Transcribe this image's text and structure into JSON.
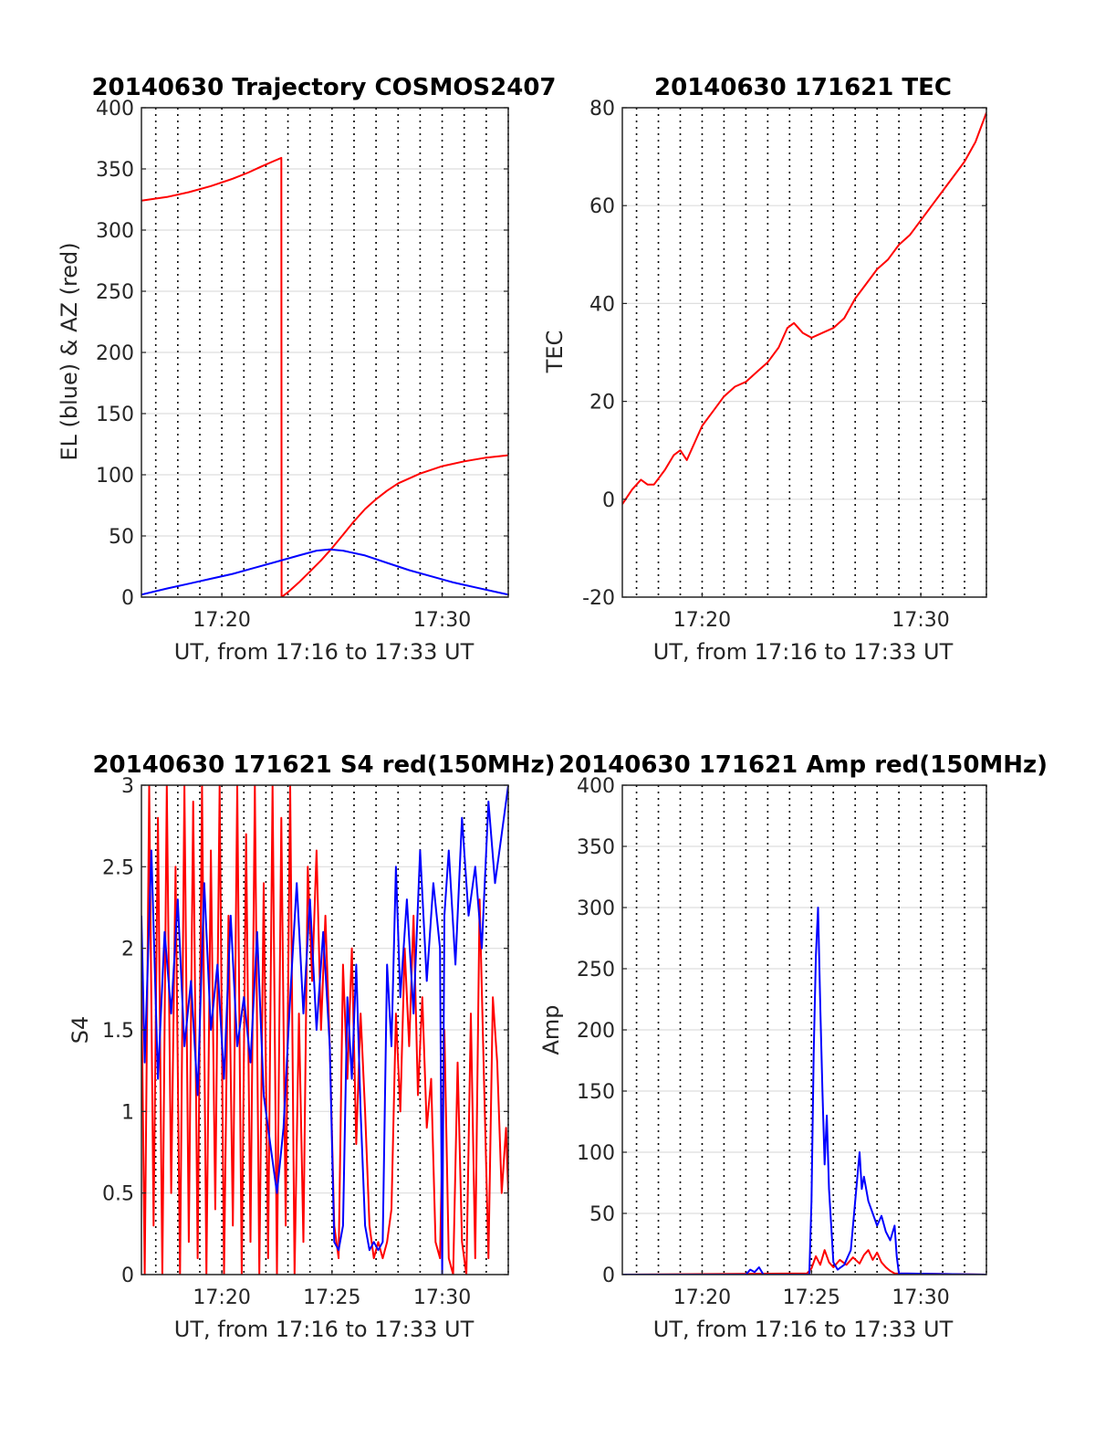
{
  "chart_data": [
    {
      "type": "line",
      "title": "20140630 Trajectory COSMOS2407",
      "xlabel": "UT, from 17:16 to 17:33 UT",
      "ylabel": "EL (blue) & AZ (red)",
      "x_unit": "minutes after 17:00 UT",
      "xlim": [
        16.35,
        33
      ],
      "ylim": [
        0,
        400
      ],
      "x_ticks": [
        20,
        30
      ],
      "x_tick_labels": [
        "17:20",
        "17:30"
      ],
      "y_ticks": [
        0,
        50,
        100,
        150,
        200,
        250,
        300,
        350,
        400
      ],
      "y_tick_labels": [
        "0",
        "50",
        "100",
        "150",
        "200",
        "250",
        "300",
        "350",
        "400"
      ],
      "x_minor_dotted": true,
      "grid": true,
      "series": [
        {
          "color": "#ff0000",
          "x": [
            16.35,
            17.5,
            18.5,
            19.5,
            20.5,
            21.2,
            21.8,
            22.3,
            22.7,
            22.71,
            23.0,
            23.5,
            24.0,
            24.5,
            25.0,
            25.5,
            26.0,
            26.5,
            27.0,
            27.5,
            28.0,
            29.0,
            30.0,
            31.0,
            32.0,
            33.0
          ],
          "y": [
            324,
            327,
            331,
            336,
            342,
            347,
            352,
            356,
            359,
            0,
            4,
            12,
            21,
            30,
            40,
            51,
            62,
            72,
            80,
            87,
            93,
            101,
            107,
            111,
            114,
            116
          ]
        },
        {
          "color": "#0000ff",
          "x": [
            16.35,
            17.5,
            18.5,
            19.5,
            20.5,
            21.5,
            22.5,
            23.5,
            24.3,
            24.9,
            25.5,
            26.5,
            27.5,
            28.5,
            29.5,
            30.5,
            31.5,
            32.5,
            33.0
          ],
          "y": [
            2,
            7,
            11,
            15,
            19,
            24,
            29,
            34,
            38,
            39,
            38,
            34,
            28,
            22,
            17,
            12,
            8,
            4,
            2
          ]
        }
      ]
    },
    {
      "type": "line",
      "title": "20140630 171621 TEC",
      "xlabel": "UT, from 17:16 to 17:33 UT",
      "ylabel": "TEC",
      "x_unit": "minutes after 17:00 UT",
      "xlim": [
        16.35,
        33
      ],
      "ylim": [
        -20,
        80
      ],
      "x_ticks": [
        20,
        30
      ],
      "x_tick_labels": [
        "17:20",
        "17:30"
      ],
      "y_ticks": [
        -20,
        0,
        20,
        40,
        60,
        80
      ],
      "y_tick_labels": [
        "-20",
        "0",
        "20",
        "40",
        "60",
        "80"
      ],
      "x_minor_dotted": true,
      "grid": true,
      "series": [
        {
          "color": "#ff0000",
          "x": [
            16.35,
            16.8,
            17.2,
            17.5,
            17.8,
            18.3,
            18.7,
            19.0,
            19.3,
            19.6,
            20.0,
            20.5,
            21.0,
            21.5,
            22.0,
            22.5,
            23.0,
            23.5,
            23.9,
            24.2,
            24.6,
            25.0,
            25.5,
            26.0,
            26.5,
            27.0,
            27.5,
            28.0,
            28.5,
            29.0,
            29.5,
            30.0,
            30.5,
            31.0,
            31.5,
            32.0,
            32.5,
            33.0
          ],
          "y": [
            -1,
            2,
            4,
            3,
            3,
            6,
            9,
            10,
            8,
            11,
            15,
            18,
            21,
            23,
            24,
            26,
            28,
            31,
            35,
            36,
            34,
            33,
            34,
            35,
            37,
            41,
            44,
            47,
            49,
            52,
            54,
            57,
            60,
            63,
            66,
            69,
            73,
            79
          ]
        }
      ]
    },
    {
      "type": "line",
      "title": "20140630 171621 S4 red(150MHz)",
      "xlabel": "UT, from 17:16 to 17:33 UT",
      "ylabel": "S4",
      "x_unit": "minutes after 17:00 UT",
      "xlim": [
        16.35,
        33
      ],
      "ylim": [
        0,
        3
      ],
      "x_ticks": [
        20,
        25,
        30
      ],
      "x_tick_labels": [
        "17:20",
        "17:25",
        "17:30"
      ],
      "y_ticks": [
        0,
        0.5,
        1,
        1.5,
        2,
        2.5,
        3
      ],
      "y_tick_labels": [
        "0",
        "0.5",
        "1",
        "1.5",
        "2",
        "2.5",
        "3"
      ],
      "x_minor_dotted": true,
      "grid": true,
      "series": [
        {
          "color": "#ff0000",
          "x": [
            16.35,
            16.5,
            16.7,
            16.9,
            17.1,
            17.3,
            17.5,
            17.7,
            17.9,
            18.1,
            18.3,
            18.5,
            18.7,
            18.9,
            19.1,
            19.3,
            19.5,
            19.7,
            19.9,
            20.1,
            20.3,
            20.5,
            20.7,
            20.9,
            21.1,
            21.3,
            21.5,
            21.7,
            21.9,
            22.1,
            22.3,
            22.5,
            22.7,
            22.9,
            23.1,
            23.3,
            23.5,
            23.7,
            23.9,
            24.1,
            24.3,
            24.5,
            24.7,
            24.9,
            25.1,
            25.3,
            25.5,
            25.7,
            25.9,
            26.1,
            26.3,
            26.5,
            26.7,
            26.9,
            27.1,
            27.3,
            27.5,
            27.7,
            27.9,
            28.1,
            28.3,
            28.5,
            28.7,
            28.9,
            29.1,
            29.3,
            29.5,
            29.7,
            29.9,
            30.1,
            30.3,
            30.5,
            30.7,
            30.9,
            31.1,
            31.3,
            31.5,
            31.7,
            31.9,
            32.1,
            32.3,
            32.5,
            32.7,
            32.9,
            33.0
          ],
          "y": [
            1.8,
            0,
            3,
            0.3,
            2.8,
            0,
            3,
            0.5,
            2.5,
            0,
            3,
            0.2,
            2.9,
            0.1,
            3,
            0,
            2.6,
            0.4,
            3,
            0,
            2.2,
            0.3,
            3,
            0,
            2.7,
            0.2,
            3,
            0,
            2.4,
            0.1,
            3,
            0,
            2.8,
            0.3,
            3,
            0,
            1.6,
            0.2,
            2.5,
            1.8,
            2.6,
            1.5,
            2.2,
            1.4,
            0.3,
            0.1,
            1.9,
            1.2,
            2.0,
            0.8,
            1.6,
            1.0,
            0.3,
            0.1,
            0.2,
            0.1,
            0.2,
            0.4,
            1.6,
            1.0,
            2.0,
            1.4,
            2.2,
            1.1,
            1.7,
            0.9,
            1.2,
            0.2,
            0.1,
            1.5,
            0.1,
            0.0,
            1.3,
            0.2,
            0.0,
            1.6,
            0.1,
            2.3,
            1.2,
            0.1,
            1.7,
            1.3,
            0.5,
            0.9,
            0.5
          ]
        },
        {
          "color": "#0000ff",
          "x": [
            16.35,
            16.5,
            16.8,
            17.1,
            17.4,
            17.7,
            18.0,
            18.3,
            18.6,
            18.9,
            19.2,
            19.5,
            19.8,
            20.1,
            20.4,
            20.7,
            21.0,
            21.3,
            21.6,
            21.9,
            22.2,
            22.5,
            22.8,
            23.1,
            23.4,
            23.7,
            24.0,
            24.3,
            24.6,
            24.9,
            25.1,
            25.3,
            25.5,
            25.7,
            25.9,
            26.1,
            26.3,
            26.5,
            26.7,
            26.9,
            27.1,
            27.3,
            27.5,
            27.7,
            27.9,
            28.1,
            28.4,
            28.7,
            29.0,
            29.3,
            29.6,
            29.9,
            30.0,
            30.1,
            30.3,
            30.6,
            30.9,
            31.2,
            31.5,
            31.8,
            32.1,
            32.4,
            32.7,
            33.0
          ],
          "y": [
            2.2,
            1.3,
            2.6,
            1.2,
            2.1,
            1.6,
            2.3,
            1.4,
            1.8,
            1.1,
            2.4,
            1.5,
            1.9,
            1.2,
            2.2,
            1.4,
            1.7,
            1.3,
            2.1,
            1.1,
            0.8,
            0.5,
            0.9,
            1.7,
            2.4,
            1.6,
            2.3,
            1.5,
            2.1,
            1.4,
            0.2,
            0.15,
            0.3,
            1.7,
            1.2,
            1.9,
            1.0,
            0.3,
            0.15,
            0.2,
            0.15,
            0.2,
            1.9,
            1.4,
            2.5,
            1.7,
            2.3,
            1.6,
            2.6,
            1.8,
            2.4,
            2.0,
            0.0,
            2.2,
            2.6,
            1.9,
            2.8,
            2.2,
            2.5,
            2.0,
            2.9,
            2.4,
            2.7,
            3.0
          ]
        }
      ]
    },
    {
      "type": "line",
      "title": "20140630 171621 Amp red(150MHz)",
      "xlabel": "UT, from 17:16 to 17:33 UT",
      "ylabel": "Amp",
      "x_unit": "minutes after 17:00 UT",
      "xlim": [
        16.35,
        33
      ],
      "ylim": [
        0,
        400
      ],
      "x_ticks": [
        20,
        25,
        30
      ],
      "x_tick_labels": [
        "17:20",
        "17:25",
        "17:30"
      ],
      "y_ticks": [
        0,
        50,
        100,
        150,
        200,
        250,
        300,
        350,
        400
      ],
      "y_tick_labels": [
        "0",
        "50",
        "100",
        "150",
        "200",
        "250",
        "300",
        "350",
        "400"
      ],
      "x_minor_dotted": true,
      "grid": true,
      "series": [
        {
          "color": "#ff0000",
          "x": [
            16.35,
            24.8,
            25.0,
            25.2,
            25.4,
            25.6,
            25.8,
            26.0,
            26.3,
            26.6,
            26.9,
            27.2,
            27.4,
            27.6,
            27.8,
            28.0,
            28.2,
            28.4,
            28.6,
            28.8,
            33.0
          ],
          "y": [
            0,
            1,
            5,
            15,
            8,
            20,
            10,
            6,
            12,
            8,
            14,
            9,
            16,
            20,
            12,
            18,
            10,
            6,
            3,
            1,
            0
          ]
        },
        {
          "color": "#0000ff",
          "x": [
            16.35,
            22.0,
            22.2,
            22.4,
            22.6,
            22.8,
            24.9,
            25.0,
            25.1,
            25.2,
            25.3,
            25.4,
            25.5,
            25.6,
            25.7,
            25.8,
            25.9,
            26.0,
            26.2,
            26.5,
            26.8,
            27.0,
            27.2,
            27.3,
            27.4,
            27.6,
            27.8,
            28.0,
            28.2,
            28.4,
            28.6,
            28.8,
            28.9,
            29.0,
            33.0
          ],
          "y": [
            0,
            0,
            4,
            2,
            6,
            0,
            0,
            60,
            180,
            260,
            300,
            220,
            150,
            90,
            130,
            70,
            40,
            10,
            4,
            8,
            20,
            60,
            100,
            70,
            80,
            60,
            50,
            40,
            48,
            35,
            28,
            40,
            15,
            1,
            0
          ]
        }
      ]
    }
  ]
}
